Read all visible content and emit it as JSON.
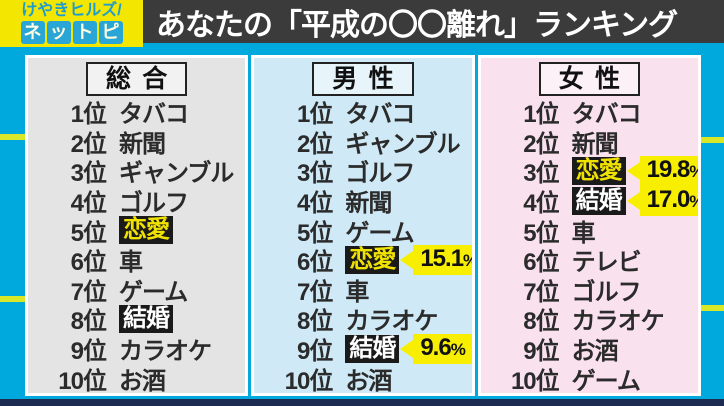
{
  "header": {
    "logo_line1": "けやきヒルズ/",
    "logo_line2": "ネットピ",
    "title": "あなたの「平成の〇〇離れ」ランキング"
  },
  "columns": [
    {
      "id": "overall",
      "title": "総合",
      "bg": "#e4e4e4",
      "rows": [
        {
          "rank": "1位",
          "item": "タバコ"
        },
        {
          "rank": "2位",
          "item": "新聞"
        },
        {
          "rank": "3位",
          "item": "ギャンブル"
        },
        {
          "rank": "4位",
          "item": "ゴルフ"
        },
        {
          "rank": "5位",
          "item": "恋愛",
          "highlight": "yellow-on-black"
        },
        {
          "rank": "6位",
          "item": "車"
        },
        {
          "rank": "7位",
          "item": "ゲーム"
        },
        {
          "rank": "8位",
          "item": "結婚",
          "highlight": "white-on-black"
        },
        {
          "rank": "9位",
          "item": "カラオケ"
        },
        {
          "rank": "10位",
          "item": "お酒"
        }
      ]
    },
    {
      "id": "male",
      "title": "男性",
      "bg": "#cfeaf6",
      "rows": [
        {
          "rank": "1位",
          "item": "タバコ"
        },
        {
          "rank": "2位",
          "item": "ギャンブル"
        },
        {
          "rank": "3位",
          "item": "ゴルフ"
        },
        {
          "rank": "4位",
          "item": "新聞"
        },
        {
          "rank": "5位",
          "item": "ゲーム"
        },
        {
          "rank": "6位",
          "item": "恋愛",
          "highlight": "yellow-on-black",
          "callout": "15.1%"
        },
        {
          "rank": "7位",
          "item": "車"
        },
        {
          "rank": "8位",
          "item": "カラオケ"
        },
        {
          "rank": "9位",
          "item": "結婚",
          "highlight": "white-on-black",
          "callout": "9.6%"
        },
        {
          "rank": "10位",
          "item": "お酒"
        }
      ]
    },
    {
      "id": "female",
      "title": "女性",
      "bg": "#f9e2ee",
      "rows": [
        {
          "rank": "1位",
          "item": "タバコ"
        },
        {
          "rank": "2位",
          "item": "新聞"
        },
        {
          "rank": "3位",
          "item": "恋愛",
          "highlight": "yellow-on-black",
          "callout": "19.8%"
        },
        {
          "rank": "4位",
          "item": "結婚",
          "highlight": "white-on-black",
          "callout": "17.0%"
        },
        {
          "rank": "5位",
          "item": "車"
        },
        {
          "rank": "6位",
          "item": "テレビ"
        },
        {
          "rank": "7位",
          "item": "ゴルフ"
        },
        {
          "rank": "8位",
          "item": "カラオケ"
        },
        {
          "rank": "9位",
          "item": "お酒"
        },
        {
          "rank": "10位",
          "item": "ゲーム"
        }
      ]
    }
  ],
  "chart_data": {
    "type": "table",
    "title": "あなたの「平成の〇〇離れ」ランキング",
    "tables": [
      {
        "name": "総合",
        "ranking": [
          "タバコ",
          "新聞",
          "ギャンブル",
          "ゴルフ",
          "恋愛",
          "車",
          "ゲーム",
          "結婚",
          "カラオケ",
          "お酒"
        ],
        "highlighted": [
          "恋愛",
          "結婚"
        ],
        "percentages": {}
      },
      {
        "name": "男性",
        "ranking": [
          "タバコ",
          "ギャンブル",
          "ゴルフ",
          "新聞",
          "ゲーム",
          "恋愛",
          "車",
          "カラオケ",
          "結婚",
          "お酒"
        ],
        "highlighted": [
          "恋愛",
          "結婚"
        ],
        "percentages": {
          "恋愛": 15.1,
          "結婚": 9.6
        }
      },
      {
        "name": "女性",
        "ranking": [
          "タバコ",
          "新聞",
          "恋愛",
          "結婚",
          "車",
          "テレビ",
          "ゴルフ",
          "カラオケ",
          "お酒",
          "ゲーム"
        ],
        "highlighted": [
          "恋愛",
          "結婚"
        ],
        "percentages": {
          "恋愛": 19.8,
          "結婚": 17.0
        }
      }
    ]
  },
  "colors": {
    "background_cyan": "#00a9dd",
    "stripe_yellow_green": "#d8e829",
    "header_bar": "#3b3b3b",
    "header_title_text": "#ffffff",
    "logo_bg_yellow": "#f3e600",
    "logo_text_blue": "#1f9ccf",
    "logo_tile_blue": "#2aa6d6",
    "logo_tile_text": "#fdfbe0",
    "rank_text": "#2b2b2b",
    "highlight_box_bg": "#1a1a1a",
    "highlight_text_yellow": "#f0e200",
    "highlight_text_white": "#ffffff",
    "callout_bg": "#f8ef00",
    "callout_text": "#111111",
    "bottom_line_navy": "#1d2a52",
    "title_box_border": "#222222"
  }
}
